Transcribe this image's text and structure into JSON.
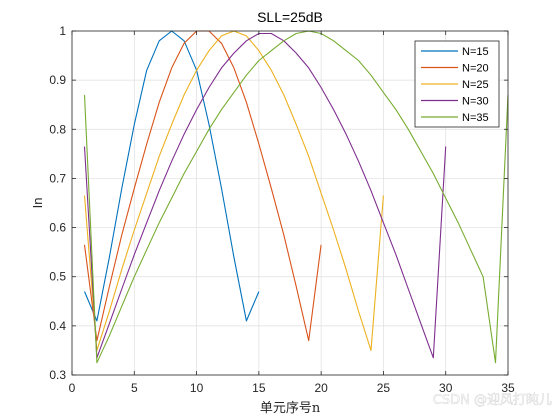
{
  "chart_data": {
    "type": "line",
    "title": "SLL=25dB",
    "xlabel": "单元序号n",
    "ylabel": "In",
    "xlim": [
      0,
      35
    ],
    "ylim": [
      0.3,
      1.0
    ],
    "xticks": [
      0,
      5,
      10,
      15,
      20,
      25,
      30,
      35
    ],
    "yticks": [
      0.3,
      0.4,
      0.5,
      0.6,
      0.7,
      0.8,
      0.9,
      1
    ],
    "grid": true,
    "legend_position": "top-right",
    "series": [
      {
        "name": "N=15",
        "color": "#0072BD",
        "x": [
          1,
          2,
          3,
          4,
          5,
          6,
          7,
          8,
          9,
          10,
          11,
          12,
          13,
          14,
          15
        ],
        "y": [
          0.47,
          0.41,
          0.54,
          0.68,
          0.81,
          0.92,
          0.98,
          1.0,
          0.98,
          0.92,
          0.81,
          0.68,
          0.54,
          0.41,
          0.47
        ]
      },
      {
        "name": "N=20",
        "color": "#D95319",
        "x": [
          1,
          2,
          3,
          4,
          5,
          6,
          7,
          8,
          9,
          10,
          11,
          12,
          13,
          14,
          15,
          16,
          17,
          18,
          19,
          20
        ],
        "y": [
          0.565,
          0.37,
          0.48,
          0.585,
          0.68,
          0.77,
          0.855,
          0.925,
          0.975,
          1.0,
          1.0,
          0.975,
          0.925,
          0.855,
          0.77,
          0.68,
          0.585,
          0.48,
          0.37,
          0.565
        ]
      },
      {
        "name": "N=25",
        "color": "#EDB120",
        "x": [
          1,
          2,
          3,
          4,
          5,
          6,
          7,
          8,
          9,
          10,
          11,
          12,
          13,
          14,
          15,
          16,
          17,
          18,
          19,
          20,
          21,
          22,
          23,
          24,
          25
        ],
        "y": [
          0.665,
          0.35,
          0.43,
          0.515,
          0.595,
          0.67,
          0.745,
          0.81,
          0.87,
          0.92,
          0.96,
          0.99,
          1.0,
          0.99,
          0.96,
          0.92,
          0.87,
          0.81,
          0.745,
          0.67,
          0.595,
          0.515,
          0.43,
          0.35,
          0.665
        ]
      },
      {
        "name": "N=30",
        "color": "#7E2F8E",
        "x": [
          1,
          2,
          3,
          4,
          5,
          6,
          7,
          8,
          9,
          10,
          11,
          12,
          13,
          14,
          15,
          16,
          17,
          18,
          19,
          20,
          21,
          22,
          23,
          24,
          25,
          26,
          27,
          28,
          29,
          30
        ],
        "y": [
          0.765,
          0.335,
          0.405,
          0.475,
          0.545,
          0.61,
          0.675,
          0.735,
          0.79,
          0.84,
          0.885,
          0.925,
          0.955,
          0.98,
          0.995,
          0.995,
          0.98,
          0.955,
          0.925,
          0.885,
          0.84,
          0.79,
          0.735,
          0.675,
          0.61,
          0.545,
          0.475,
          0.405,
          0.335,
          0.765
        ]
      },
      {
        "name": "N=35",
        "color": "#77AC30",
        "x": [
          1,
          2,
          3,
          4,
          5,
          6,
          7,
          8,
          9,
          10,
          11,
          12,
          13,
          14,
          15,
          16,
          17,
          18,
          19,
          20,
          21,
          22,
          23,
          24,
          25,
          26,
          27,
          28,
          29,
          30,
          31,
          32,
          33,
          34,
          35
        ],
        "y": [
          0.87,
          0.325,
          0.38,
          0.44,
          0.5,
          0.555,
          0.61,
          0.66,
          0.71,
          0.755,
          0.8,
          0.84,
          0.875,
          0.91,
          0.94,
          0.96,
          0.98,
          0.995,
          1.0,
          0.995,
          0.98,
          0.96,
          0.94,
          0.91,
          0.875,
          0.84,
          0.8,
          0.755,
          0.71,
          0.66,
          0.61,
          0.555,
          0.5,
          0.325,
          0.87
        ]
      }
    ]
  },
  "watermark": "CSDN @迎风打盹儿"
}
